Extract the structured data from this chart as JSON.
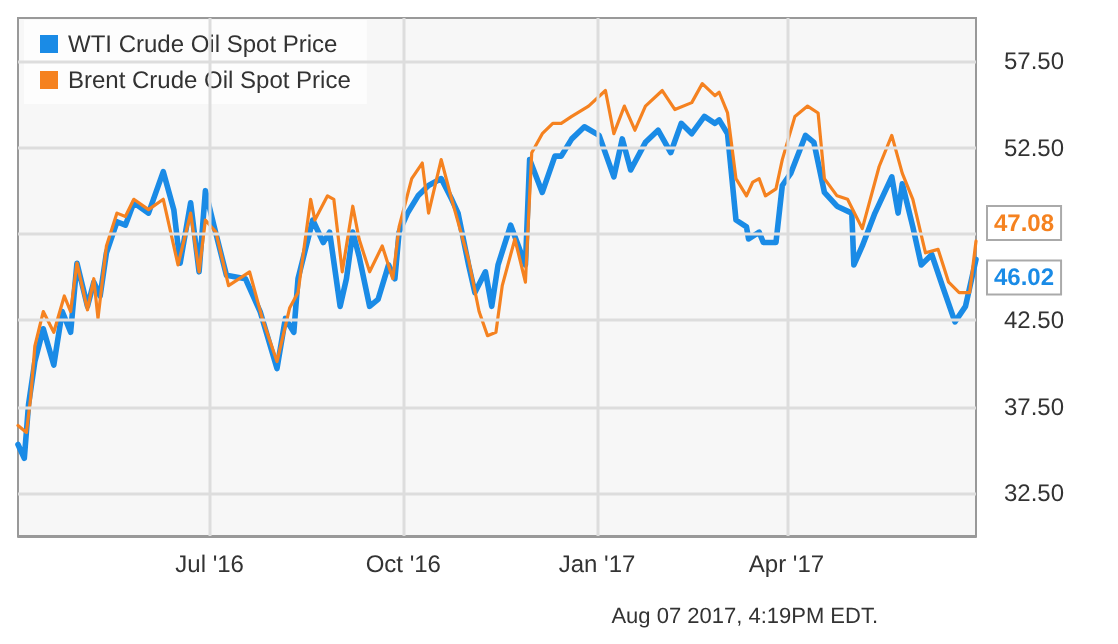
{
  "chart_data": {
    "type": "line",
    "xlim": [
      "2016-04-01",
      "2017-06-30"
    ],
    "ylim": [
      30,
      60
    ],
    "xticks": [
      {
        "value": "2016-07-01",
        "label": "Jul '16"
      },
      {
        "value": "2016-10-01",
        "label": "Oct '16"
      },
      {
        "value": "2017-01-01",
        "label": "Jan '17"
      },
      {
        "value": "2017-04-01",
        "label": "Apr '17"
      }
    ],
    "yticks": [
      {
        "value": 32.5,
        "label": "32.50"
      },
      {
        "value": 37.5,
        "label": "37.50"
      },
      {
        "value": 42.5,
        "label": "42.50"
      },
      {
        "value": 47.5,
        "label": null
      },
      {
        "value": 52.5,
        "label": "52.50"
      },
      {
        "value": 57.5,
        "label": "57.50"
      }
    ],
    "grid": true,
    "legend": "top left",
    "marker": "none",
    "line_style": "solid",
    "annotations": [
      "Aug 07 2017, 4:19PM EDT."
    ],
    "series": [
      {
        "name": "WTI Crude Oil Spot Price",
        "color": "#1a8be6",
        "x": [
          "2016-04-01",
          "2016-04-04",
          "2016-04-06",
          "2016-04-09",
          "2016-04-13",
          "2016-04-18",
          "2016-04-22",
          "2016-04-26",
          "2016-04-29",
          "2016-05-04",
          "2016-05-07",
          "2016-05-10",
          "2016-05-13",
          "2016-05-18",
          "2016-05-22",
          "2016-05-26",
          "2016-06-02",
          "2016-06-09",
          "2016-06-14",
          "2016-06-17",
          "2016-06-22",
          "2016-06-26",
          "2016-06-29",
          "2016-07-03",
          "2016-07-09",
          "2016-07-18",
          "2016-07-25",
          "2016-08-02",
          "2016-08-06",
          "2016-08-10",
          "2016-08-12",
          "2016-08-19",
          "2016-08-24",
          "2016-08-27",
          "2016-09-01",
          "2016-09-04",
          "2016-09-07",
          "2016-09-10",
          "2016-09-15",
          "2016-09-19",
          "2016-09-24",
          "2016-09-27",
          "2016-09-29",
          "2016-10-03",
          "2016-10-08",
          "2016-10-13",
          "2016-10-19",
          "2016-10-24",
          "2016-10-27",
          "2016-11-01",
          "2016-11-04",
          "2016-11-09",
          "2016-11-12",
          "2016-11-15",
          "2016-11-21",
          "2016-11-28",
          "2016-11-30",
          "2016-12-06",
          "2016-12-12",
          "2016-12-15",
          "2016-12-20",
          "2016-12-26",
          "2017-01-02",
          "2017-01-09",
          "2017-01-13",
          "2017-01-17",
          "2017-01-24",
          "2017-01-30",
          "2017-02-05",
          "2017-02-10",
          "2017-02-15",
          "2017-02-21",
          "2017-02-26",
          "2017-02-28",
          "2017-03-04",
          "2017-03-08",
          "2017-03-13",
          "2017-03-14",
          "2017-03-19",
          "2017-03-21",
          "2017-03-27",
          "2017-03-30",
          "2017-04-03",
          "2017-04-10",
          "2017-04-14",
          "2017-04-19",
          "2017-04-25",
          "2017-05-02",
          "2017-05-03",
          "2017-05-07",
          "2017-05-13",
          "2017-05-21",
          "2017-05-24",
          "2017-05-26",
          "2017-05-31",
          "2017-06-04",
          "2017-06-09",
          "2017-06-14",
          "2017-06-20",
          "2017-06-25",
          "2017-06-30"
        ],
        "values": [
          35.3,
          34.5,
          37.6,
          40.1,
          42.0,
          39.9,
          43.0,
          41.8,
          45.8,
          43.3,
          44.7,
          43.9,
          46.4,
          48.2,
          48.0,
          49.3,
          48.7,
          51.1,
          48.9,
          45.8,
          49.3,
          45.3,
          50.0,
          48.0,
          45.1,
          44.9,
          43.0,
          39.7,
          42.6,
          41.8,
          44.9,
          48.3,
          47.0,
          47.6,
          43.3,
          44.9,
          47.6,
          46.2,
          43.3,
          43.7,
          45.7,
          44.9,
          47.6,
          48.7,
          49.7,
          50.3,
          50.7,
          49.5,
          48.7,
          45.7,
          44.1,
          45.3,
          43.3,
          45.7,
          48.0,
          45.7,
          51.8,
          49.9,
          52.0,
          52.0,
          53.0,
          53.7,
          53.2,
          50.8,
          53.0,
          51.2,
          52.8,
          53.5,
          52.2,
          53.9,
          53.3,
          54.3,
          53.9,
          54.1,
          53.3,
          48.3,
          47.9,
          47.2,
          47.6,
          47.0,
          47.0,
          50.3,
          51.0,
          53.2,
          52.8,
          49.9,
          49.1,
          48.7,
          45.7,
          46.8,
          48.7,
          50.8,
          48.7,
          50.4,
          47.9,
          45.7,
          46.3,
          44.5,
          42.4,
          43.3,
          46.02
        ],
        "value_labels": [
          null,
          null,
          null,
          null,
          null,
          null,
          null,
          null,
          null,
          null,
          null,
          null,
          null,
          null,
          null,
          null,
          null,
          null,
          null,
          null,
          null,
          null,
          null,
          null,
          null,
          null,
          null,
          null,
          null,
          null,
          null,
          null,
          null,
          null,
          null,
          null,
          null,
          null,
          null,
          null,
          null,
          null,
          null,
          null,
          null,
          null,
          null,
          null,
          null,
          null,
          null,
          null,
          null,
          null,
          null,
          null,
          null,
          null,
          null,
          null,
          null,
          null,
          null,
          null,
          null,
          null,
          null,
          null,
          null,
          null,
          null,
          null,
          null,
          null,
          null,
          null,
          null,
          null,
          null,
          null,
          null,
          null,
          null,
          null,
          null,
          null,
          null,
          null,
          null,
          null,
          null,
          null,
          null,
          null,
          null,
          null,
          null,
          null,
          null,
          null,
          "46.02"
        ]
      },
      {
        "name": "Brent Crude Oil Spot Price",
        "color": "#f58220",
        "x": [
          "2016-04-01",
          "2016-04-05",
          "2016-04-07",
          "2016-04-09",
          "2016-04-13",
          "2016-04-18",
          "2016-04-23",
          "2016-04-26",
          "2016-04-29",
          "2016-05-04",
          "2016-05-07",
          "2016-05-09",
          "2016-05-13",
          "2016-05-18",
          "2016-05-22",
          "2016-05-26",
          "2016-06-02",
          "2016-06-09",
          "2016-06-16",
          "2016-06-22",
          "2016-06-26",
          "2016-06-29",
          "2016-07-04",
          "2016-07-10",
          "2016-07-20",
          "2016-07-26",
          "2016-08-02",
          "2016-08-08",
          "2016-08-12",
          "2016-08-18",
          "2016-08-20",
          "2016-08-26",
          "2016-08-29",
          "2016-09-02",
          "2016-09-07",
          "2016-09-10",
          "2016-09-15",
          "2016-09-21",
          "2016-09-26",
          "2016-09-29",
          "2016-10-05",
          "2016-10-10",
          "2016-10-13",
          "2016-10-19",
          "2016-10-24",
          "2016-11-01",
          "2016-11-06",
          "2016-11-10",
          "2016-11-14",
          "2016-11-17",
          "2016-11-23",
          "2016-11-28",
          "2016-12-01",
          "2016-12-06",
          "2016-12-11",
          "2016-12-15",
          "2016-12-20",
          "2016-12-28",
          "2017-01-05",
          "2017-01-09",
          "2017-01-14",
          "2017-01-19",
          "2017-01-24",
          "2017-02-01",
          "2017-02-07",
          "2017-02-15",
          "2017-02-20",
          "2017-02-26",
          "2017-02-28",
          "2017-03-04",
          "2017-03-08",
          "2017-03-13",
          "2017-03-16",
          "2017-03-19",
          "2017-03-22",
          "2017-03-27",
          "2017-03-30",
          "2017-04-05",
          "2017-04-11",
          "2017-04-16",
          "2017-04-19",
          "2017-04-25",
          "2017-04-30",
          "2017-05-07",
          "2017-05-15",
          "2017-05-21",
          "2017-05-26",
          "2017-05-31",
          "2017-06-06",
          "2017-06-12",
          "2017-06-17",
          "2017-06-22",
          "2017-06-27",
          "2017-06-30"
        ],
        "values": [
          36.4,
          36.0,
          38.0,
          41.0,
          43.0,
          41.8,
          43.9,
          43.0,
          45.8,
          43.1,
          44.9,
          42.6,
          46.8,
          48.7,
          48.5,
          49.5,
          48.9,
          49.5,
          45.7,
          48.7,
          45.3,
          48.3,
          47.6,
          44.5,
          45.3,
          42.6,
          40.1,
          43.2,
          44.1,
          49.5,
          48.3,
          49.7,
          49.5,
          45.3,
          49.1,
          47.2,
          45.3,
          46.8,
          44.9,
          47.9,
          50.7,
          51.6,
          48.7,
          51.8,
          49.5,
          46.0,
          43.0,
          41.6,
          41.8,
          44.5,
          47.2,
          44.7,
          52.2,
          53.3,
          53.9,
          53.9,
          54.3,
          54.9,
          55.8,
          53.3,
          54.9,
          53.5,
          54.9,
          55.8,
          54.7,
          55.1,
          56.2,
          55.5,
          55.7,
          54.5,
          50.7,
          49.7,
          50.5,
          50.7,
          49.7,
          50.1,
          51.8,
          54.3,
          54.9,
          54.5,
          50.7,
          49.7,
          49.5,
          47.8,
          51.4,
          53.2,
          51.0,
          49.5,
          46.4,
          46.6,
          44.7,
          44.1,
          44.1,
          47.08
        ],
        "value_labels": [
          null,
          null,
          null,
          null,
          null,
          null,
          null,
          null,
          null,
          null,
          null,
          null,
          null,
          null,
          null,
          null,
          null,
          null,
          null,
          null,
          null,
          null,
          null,
          null,
          null,
          null,
          null,
          null,
          null,
          null,
          null,
          null,
          null,
          null,
          null,
          null,
          null,
          null,
          null,
          null,
          null,
          null,
          null,
          null,
          null,
          null,
          null,
          null,
          null,
          null,
          null,
          null,
          null,
          null,
          null,
          null,
          null,
          null,
          null,
          null,
          null,
          null,
          null,
          null,
          null,
          null,
          null,
          null,
          null,
          null,
          null,
          null,
          null,
          null,
          null,
          null,
          null,
          null,
          null,
          null,
          null,
          null,
          null,
          null,
          null,
          null,
          null,
          null,
          null,
          null,
          null,
          null,
          null,
          "47.08"
        ]
      }
    ]
  }
}
